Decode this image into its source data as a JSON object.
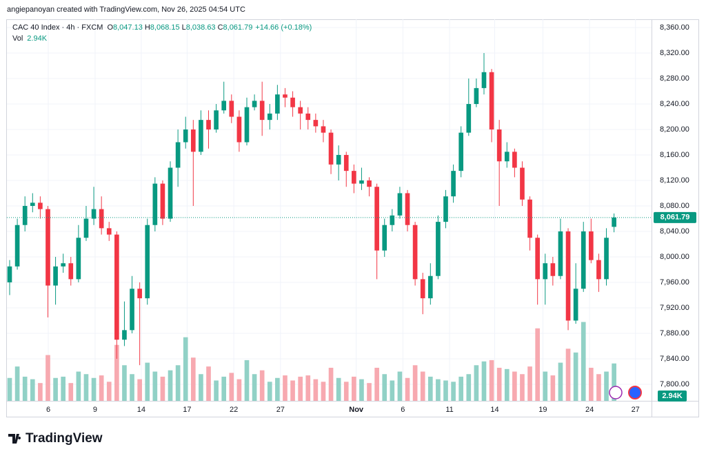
{
  "header": {
    "attribution": "angiepanoyan created with TradingView.com, Nov 26, 2025 04:54 UTC",
    "symbol": "CAC 40 Index · 4h · FXCM",
    "ohlc": [
      {
        "key": "O",
        "text": "8,047.13"
      },
      {
        "key": "H",
        "text": "8,068.15"
      },
      {
        "key": "L",
        "text": "8,038.63"
      },
      {
        "key": "C",
        "text": "8,061.79"
      }
    ],
    "change": "+14.66 (+0.18%)",
    "vol_key": "Vol",
    "vol_text": "2.94K"
  },
  "chart_data": {
    "type": "candlestick",
    "open": [
      7960,
      7985,
      8050,
      8080,
      8085,
      8075,
      7955,
      7985,
      7990,
      7965,
      8030,
      8060,
      8075,
      8045,
      8035,
      7870,
      7885,
      7950,
      7935,
      8050,
      8115,
      8060,
      8140,
      8180,
      8200,
      8165,
      8215,
      8200,
      8230,
      8245,
      8220,
      8180,
      8235,
      8245,
      8215,
      8225,
      8255,
      8250,
      8235,
      8225,
      8215,
      8205,
      8195,
      8145,
      8160,
      8135,
      8115,
      8120,
      8110,
      8010,
      8050,
      8065,
      8100,
      8050,
      7965,
      7935,
      7970,
      8055,
      8095,
      8135,
      8195,
      8240,
      8265,
      8290,
      8200,
      8150,
      8165,
      8140,
      8090,
      8030,
      7965,
      7990,
      7970,
      8040,
      7900,
      7950,
      8040,
      7995,
      7965,
      8047.13
    ],
    "high": [
      7995,
      8060,
      8095,
      8100,
      8095,
      8080,
      8000,
      8005,
      8000,
      8050,
      8080,
      8110,
      8095,
      8055,
      8040,
      7930,
      7970,
      7960,
      8060,
      8125,
      8120,
      8150,
      8200,
      8220,
      8215,
      8230,
      8230,
      8240,
      8275,
      8255,
      8230,
      8250,
      8255,
      8275,
      8240,
      8270,
      8265,
      8260,
      8245,
      8235,
      8225,
      8215,
      8200,
      8175,
      8165,
      8145,
      8140,
      8125,
      8115,
      8060,
      8075,
      8110,
      8105,
      8055,
      7975,
      7990,
      8065,
      8105,
      8145,
      8205,
      8280,
      8280,
      8320,
      8295,
      8215,
      8180,
      8170,
      8150,
      8095,
      8035,
      8005,
      8000,
      8060,
      8045,
      7990,
      8055,
      8060,
      8005,
      8045,
      8068.15
    ],
    "low": [
      7940,
      7980,
      8040,
      8070,
      8060,
      7905,
      7925,
      7975,
      7955,
      7960,
      8025,
      8050,
      8035,
      8025,
      7840,
      7860,
      7880,
      7830,
      7925,
      8040,
      8050,
      8055,
      8110,
      8170,
      8080,
      8160,
      8170,
      8195,
      8225,
      8210,
      8165,
      8175,
      8230,
      8190,
      8200,
      8215,
      8235,
      8220,
      8200,
      8200,
      8195,
      8180,
      8130,
      8120,
      8110,
      8100,
      8105,
      8095,
      7965,
      8000,
      8040,
      8060,
      8040,
      7955,
      7910,
      7925,
      7965,
      8045,
      8085,
      8125,
      8190,
      8235,
      8255,
      8180,
      8080,
      8140,
      8125,
      8080,
      8010,
      7925,
      7925,
      7955,
      7965,
      7885,
      7895,
      7945,
      7990,
      7945,
      7955,
      8038.63
    ],
    "close": [
      7985,
      8050,
      8080,
      8085,
      8075,
      7955,
      7985,
      7990,
      7965,
      8030,
      8060,
      8075,
      8045,
      8035,
      7870,
      7885,
      7950,
      7935,
      8050,
      8115,
      8060,
      8140,
      8180,
      8200,
      8165,
      8215,
      8200,
      8230,
      8245,
      8220,
      8180,
      8235,
      8245,
      8215,
      8225,
      8255,
      8250,
      8235,
      8225,
      8215,
      8205,
      8195,
      8145,
      8160,
      8135,
      8115,
      8120,
      8110,
      8010,
      8050,
      8065,
      8100,
      8050,
      7965,
      7935,
      7970,
      8055,
      8095,
      8135,
      8195,
      8240,
      8265,
      8290,
      8200,
      8150,
      8165,
      8140,
      8090,
      8030,
      7965,
      7990,
      7970,
      8040,
      7900,
      7950,
      8040,
      7995,
      7965,
      8030,
      8061.79
    ],
    "volume": [
      1800,
      2700,
      1900,
      1700,
      1400,
      3600,
      1800,
      1900,
      1400,
      2300,
      2100,
      1800,
      2000,
      1500,
      4400,
      2800,
      2100,
      1700,
      3000,
      2300,
      1900,
      2400,
      2800,
      5000,
      3400,
      2100,
      2700,
      1600,
      1900,
      2200,
      1700,
      3200,
      2100,
      2400,
      1500,
      1800,
      2000,
      1600,
      1900,
      2000,
      1700,
      1500,
      2600,
      1800,
      1500,
      1900,
      1700,
      1400,
      2600,
      2100,
      1600,
      2300,
      1800,
      2800,
      2300,
      1900,
      1700,
      1600,
      1500,
      1900,
      2100,
      2800,
      3100,
      3200,
      2600,
      2500,
      2300,
      2100,
      2700,
      5700,
      2300,
      2000,
      3000,
      4100,
      3800,
      6200,
      2600,
      2100,
      2300,
      2940
    ],
    "last_volume_label": "2.94K",
    "last_price": {
      "value": 8061.79,
      "label": "8,061.79"
    },
    "up_color": "#089981",
    "down_color": "#f23645",
    "volume_up_color": "#91d1c6",
    "volume_down_color": "#f7a9b0",
    "xlim": [
      -0.36,
      83.9
    ],
    "ylim": [
      7774,
      8373
    ],
    "volume_lim": [
      0,
      30000
    ],
    "xticks": [
      {
        "value": 5.05,
        "label": "6"
      },
      {
        "value": 11.17,
        "label": "9"
      },
      {
        "value": 17.2,
        "label": "14"
      },
      {
        "value": 23.2,
        "label": "17"
      },
      {
        "value": 29.3,
        "label": "22"
      },
      {
        "value": 35.4,
        "label": "27"
      },
      {
        "value": 45.3,
        "label": "Nov"
      },
      {
        "value": 51.4,
        "label": "6"
      },
      {
        "value": 57.5,
        "label": "11"
      },
      {
        "value": 63.4,
        "label": "14"
      },
      {
        "value": 69.7,
        "label": "19"
      },
      {
        "value": 75.8,
        "label": "24"
      },
      {
        "value": 81.8,
        "label": "27"
      }
    ],
    "yticks": [
      {
        "value": 7800,
        "label": "7,800.00"
      },
      {
        "value": 7840,
        "label": "7,840.00"
      },
      {
        "value": 7880,
        "label": "7,880.00"
      },
      {
        "value": 7920,
        "label": "7,920.00"
      },
      {
        "value": 7960,
        "label": "7,960.00"
      },
      {
        "value": 8000,
        "label": "8,000.00"
      },
      {
        "value": 8040,
        "label": "8,040.00"
      },
      {
        "value": 8080,
        "label": "8,080.00"
      },
      {
        "value": 8120,
        "label": "8,120.00"
      },
      {
        "value": 8160,
        "label": "8,160.00"
      },
      {
        "value": 8200,
        "label": "8,200.00"
      },
      {
        "value": 8240,
        "label": "8,240.00"
      },
      {
        "value": 8280,
        "label": "8,280.00"
      },
      {
        "value": 8320,
        "label": "8,320.00"
      },
      {
        "value": 8360,
        "label": "8,360.00"
      }
    ],
    "grid": true
  },
  "footer": {
    "logo": "TradingView"
  }
}
